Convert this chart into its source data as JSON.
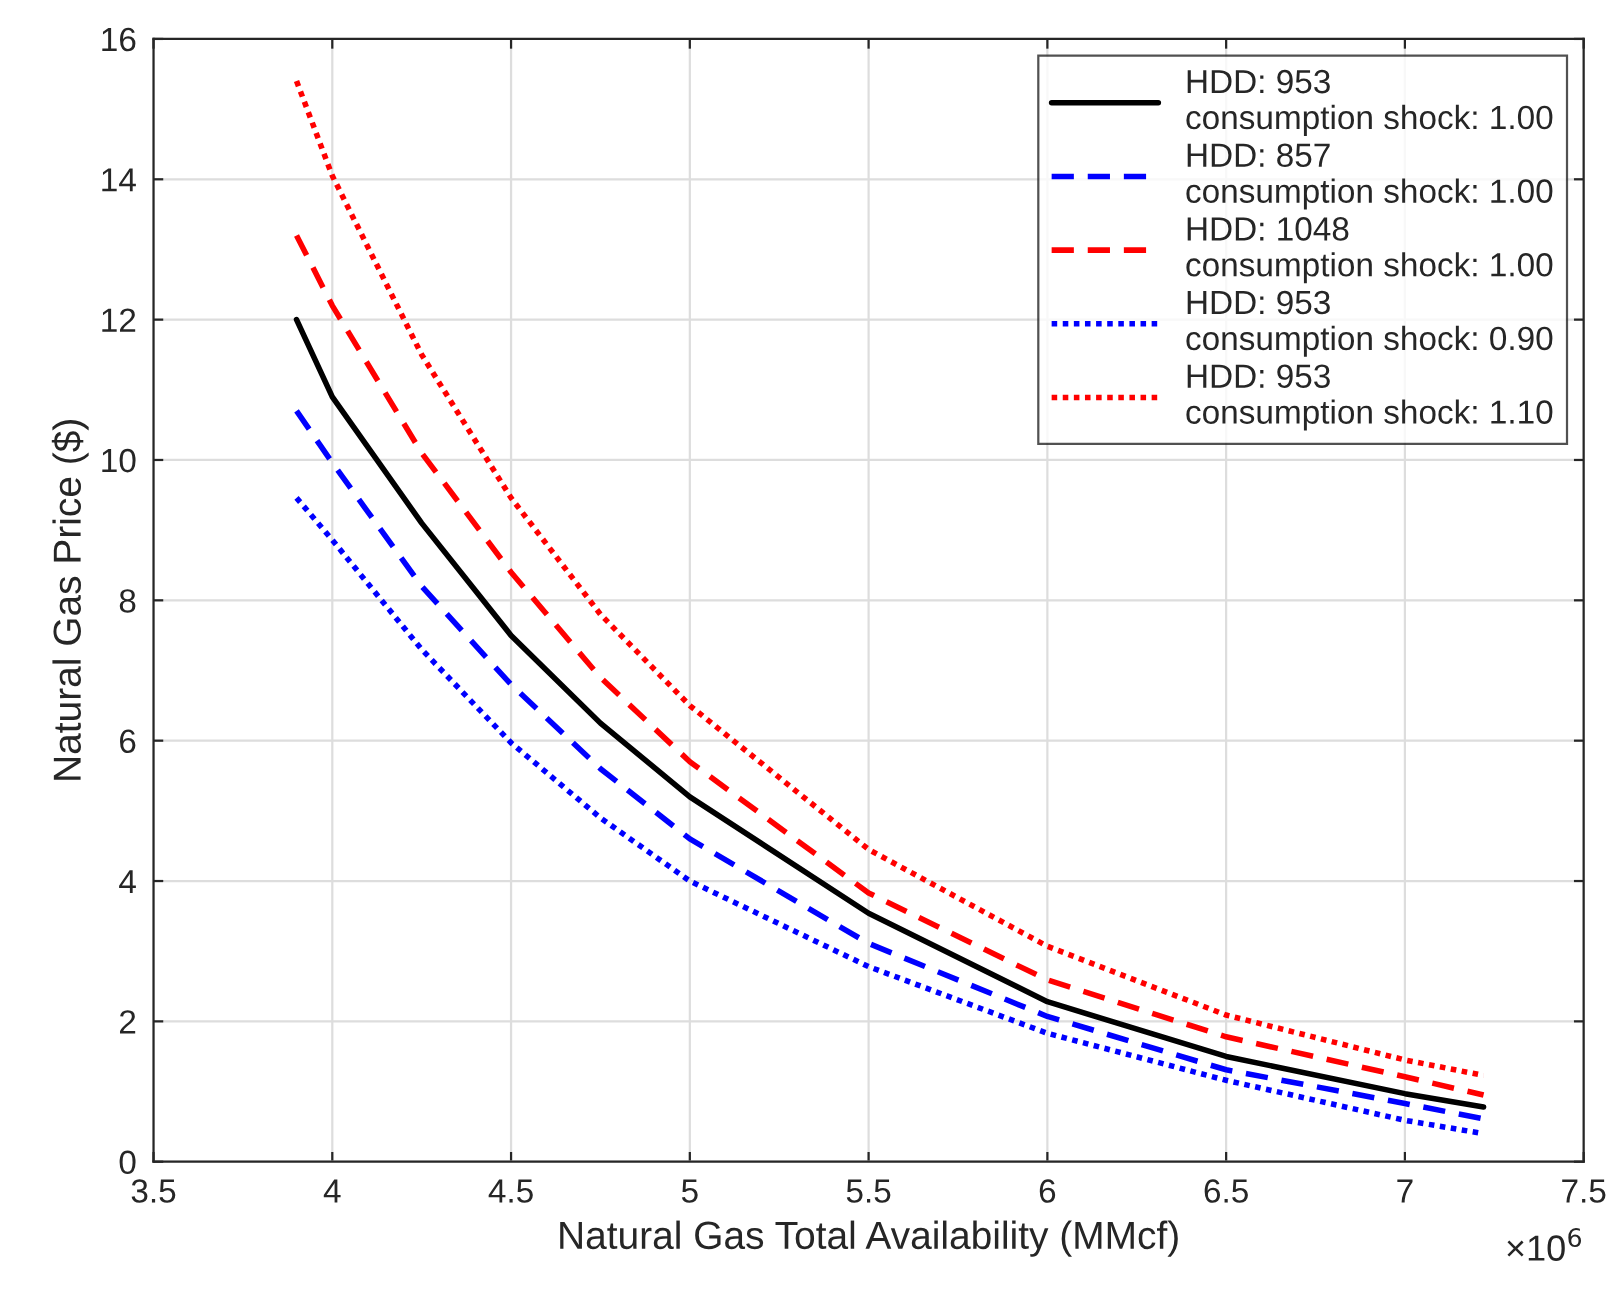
{
  "chart_data": {
    "type": "line",
    "xlabel": "Natural Gas Total Availability (MMcf)",
    "ylabel": "Natural Gas Price ($)",
    "x": [
      3.9,
      4.0,
      4.25,
      4.5,
      4.75,
      5.0,
      5.5,
      6.0,
      6.5,
      7.0,
      7.22
    ],
    "series": [
      {
        "name": "HDD: 953\nconsumption shock: 1.00",
        "color": "#000000",
        "line_style": "solid",
        "values": [
          12.0,
          10.9,
          9.1,
          7.5,
          6.25,
          5.2,
          3.54,
          2.28,
          1.5,
          0.97,
          0.78
        ]
      },
      {
        "name": "HDD: 857\nconsumption shock: 1.00",
        "color": "#0000ff",
        "line_style": "dashed",
        "values": [
          10.7,
          9.96,
          8.2,
          6.8,
          5.6,
          4.6,
          3.11,
          2.07,
          1.31,
          0.83,
          0.61
        ]
      },
      {
        "name": "HDD: 1048\nconsumption shock: 1.00",
        "color": "#ff0000",
        "line_style": "dashed",
        "values": [
          13.2,
          12.2,
          10.1,
          8.4,
          6.9,
          5.7,
          3.83,
          2.59,
          1.78,
          1.21,
          0.95
        ]
      },
      {
        "name": "HDD: 953\nconsumption shock: 0.90",
        "color": "#0000ff",
        "line_style": "dotted",
        "values": [
          9.46,
          8.86,
          7.3,
          5.97,
          4.9,
          4.0,
          2.78,
          1.83,
          1.16,
          0.59,
          0.4
        ]
      },
      {
        "name": "HDD: 953\nconsumption shock: 1.10",
        "color": "#ff0000",
        "line_style": "dotted",
        "values": [
          15.4,
          14.05,
          11.5,
          9.46,
          7.8,
          6.5,
          4.45,
          3.07,
          2.09,
          1.45,
          1.23
        ]
      }
    ],
    "xlim": [
      3.5,
      7.5
    ],
    "xticks": [
      3.5,
      4,
      4.5,
      5,
      5.5,
      6,
      6.5,
      7,
      7.5
    ],
    "ylim": [
      0,
      16
    ],
    "yticks": [
      0,
      2,
      4,
      6,
      8,
      10,
      12,
      14,
      16
    ],
    "annotations": [
      "×10$^{6}$"
    ],
    "grid": true,
    "legend": "top right"
  }
}
